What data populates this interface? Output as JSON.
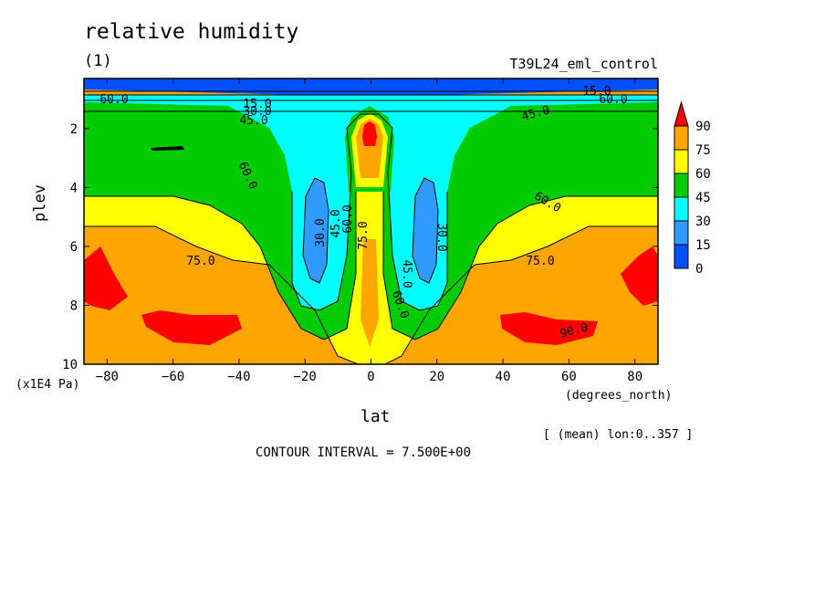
{
  "chart_data": {
    "type": "contour",
    "title": "relative humidity",
    "subtitle": "(1)",
    "run_label": "T39L24_eml_control",
    "xlabel": "lat",
    "xunit": "(degrees_north)",
    "ylabel": "plev",
    "yunit": "(x1E4 Pa)",
    "xlim": [
      -87,
      87
    ],
    "ylim": [
      10,
      0.3
    ],
    "x_ticks": [
      -80,
      -60,
      -40,
      -20,
      0,
      20,
      40,
      60,
      80
    ],
    "y_ticks": [
      2,
      4,
      6,
      8,
      10
    ],
    "colorbar": {
      "levels": [
        "0",
        "15",
        "30",
        "45",
        "60",
        "75",
        "90"
      ],
      "colors": [
        "#0050ff",
        "#2f9bff",
        "#00ffff",
        "#00cc00",
        "#ffff00",
        "#ffa500",
        "#ff0000"
      ]
    },
    "contour_labels": [
      "15.0",
      "30.0",
      "45.0",
      "60.0",
      "75.0",
      "90.0"
    ],
    "contour_interval": "CONTOUR INTERVAL = 7.500E+00",
    "mean_note": "[ (mean) lon:0..357 ]"
  }
}
